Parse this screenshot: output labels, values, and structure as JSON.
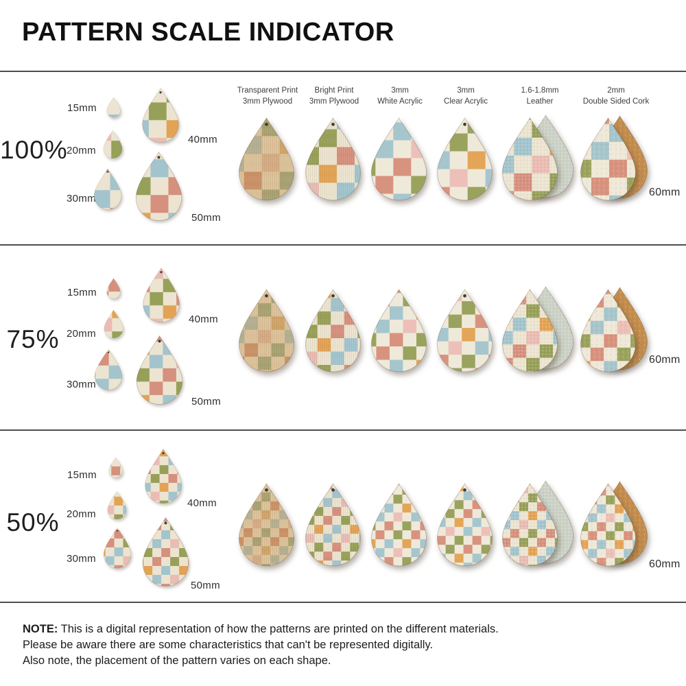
{
  "title": "PATTERN SCALE INDICATOR",
  "materials": [
    {
      "line1": "Transparent Print",
      "line2": "3mm Plywood"
    },
    {
      "line1": "Bright Print",
      "line2": "3mm Plywood"
    },
    {
      "line1": "3mm",
      "line2": "White Acrylic"
    },
    {
      "line1": "3mm",
      "line2": "Clear Acrylic"
    },
    {
      "line1": "1.6-1.8mm",
      "line2": "Leather"
    },
    {
      "line1": "2mm",
      "line2": "Double Sided Cork"
    }
  ],
  "rows": [
    {
      "scale": "100%",
      "size_labels": {
        "s15": "15mm",
        "s20": "20mm",
        "s30": "30mm",
        "s40": "40mm",
        "s50": "50mm"
      },
      "right_size": "60mm"
    },
    {
      "scale": "75%",
      "size_labels": {
        "s15": "15mm",
        "s20": "20mm",
        "s30": "30mm",
        "s40": "40mm",
        "s50": "50mm"
      },
      "right_size": "60mm"
    },
    {
      "scale": "50%",
      "size_labels": {
        "s15": "15mm",
        "s20": "20mm",
        "s30": "30mm",
        "s40": "40mm",
        "s50": "50mm"
      },
      "right_size": "60mm"
    }
  ],
  "note": {
    "label": "NOTE:",
    "line1": "This is a digital representation of how the patterns are printed on the different materials.",
    "line2": "Please be aware there are some characteristics that can't be represented digitally.",
    "line3": "Also note, the placement of the pattern varies on each shape."
  },
  "colors": {
    "divider": "#4d4d4d",
    "hole": "#45392f",
    "leather_back": "#ccd2c6",
    "cork_back": "#c38d4e",
    "palettes": {
      "bright": {
        "base": "#ece4d0",
        "green": "#97a059",
        "salmon": "#d6907e",
        "blue": "#a3c4cd",
        "orange": "#e2a355",
        "pink": "#e9bcb4"
      },
      "soft": {
        "base": "#efe9da",
        "green": "#9aa35e",
        "salmon": "#d8937f",
        "blue": "#a6c6ce",
        "orange": "#e3a558",
        "pink": "#ecc0b8"
      },
      "wood": {
        "base": "#dcc29a",
        "green": "#a8a272",
        "salmon": "#cb9166",
        "blue": "#b3b092",
        "orange": "#cfa468",
        "pink": "#d4ab85"
      }
    }
  }
}
